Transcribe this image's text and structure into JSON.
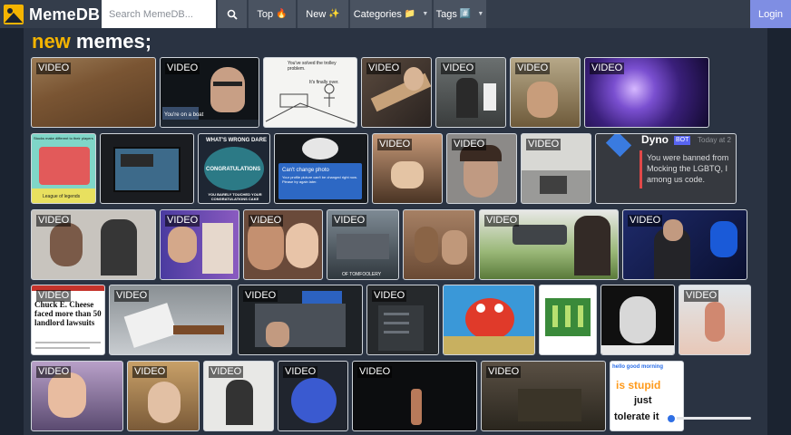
{
  "nav": {
    "brand": "MemeDB",
    "search_placeholder": "Search MemeDB...",
    "search_icon": "magnifier-icon",
    "top_label": "Top",
    "top_emoji": "🔥",
    "new_label": "New",
    "new_emoji": "✨",
    "categories_label": "Categories",
    "categories_emoji": "📁",
    "tags_label": "Tags",
    "tags_emoji": "#️⃣",
    "login_label": "Login"
  },
  "heading": {
    "accent": "new",
    "rest": " memes;"
  },
  "badge_label": "VIDEO",
  "captions": {
    "m2_text": "You're on a boat",
    "m3_top": "You've solved the trolley problem.",
    "m3_bottom": "It's finally over.",
    "m11_title": "WHAT'S WRONG DARE",
    "m11_cake": "CONGRATULATIONS",
    "m11_bottom": "YOU BARELY TOUCHED YOUR CONGRATULATIONS CAKE",
    "m12_title": "Can't change photo",
    "m12_body": "Your profile picture can't be changed right now. Please try again later.",
    "m16_name": "Dyno",
    "m16_bot": "BOT",
    "m16_time": "Today at 2",
    "m16_line1": "You were banned from",
    "m16_line2": "Mocking the LGBTQ, I",
    "m16_line3": "among us code.",
    "m8_caption": "League of legends",
    "m8_top": "Stocks make different to their players",
    "m21_tag": "OF TOMFOOLERY",
    "m25_headline": "Chuck E. Cheese faced more than 50 landlord lawsuits",
    "m33_line1": "is stupid",
    "m33_line2": "just",
    "m33_line3": "tolerate it",
    "m33_header": "hello good morning"
  },
  "tiles": [
    {
      "name": "meme-leaves",
      "video": true
    },
    {
      "name": "meme-heisenberg",
      "video": true
    },
    {
      "name": "meme-trolley-problem",
      "video": false
    },
    {
      "name": "meme-guitar",
      "video": true
    },
    {
      "name": "meme-room",
      "video": true
    },
    {
      "name": "meme-hallway",
      "video": true
    },
    {
      "name": "meme-galaxy",
      "video": true
    },
    {
      "name": "meme-league-comic",
      "video": false
    },
    {
      "name": "meme-tv-screen",
      "video": false
    },
    {
      "name": "meme-cake",
      "video": false
    },
    {
      "name": "meme-cant-change-photo",
      "video": false
    },
    {
      "name": "meme-cats-paws",
      "video": true
    },
    {
      "name": "meme-girl-closeup",
      "video": true
    },
    {
      "name": "meme-office",
      "video": true
    },
    {
      "name": "meme-dyno-ban",
      "video": false
    },
    {
      "name": "meme-guy-clap",
      "video": true
    },
    {
      "name": "meme-facetime",
      "video": true
    },
    {
      "name": "meme-baby-face",
      "video": true
    },
    {
      "name": "meme-tomfoolery",
      "video": true
    },
    {
      "name": "meme-cats-brown",
      "video": false
    },
    {
      "name": "meme-gun",
      "video": true
    },
    {
      "name": "meme-sonic-news",
      "video": true
    },
    {
      "name": "meme-chuck-e-cheese",
      "video": true
    },
    {
      "name": "meme-boat-crash",
      "video": true
    },
    {
      "name": "meme-window",
      "video": true
    },
    {
      "name": "meme-phone-dark",
      "video": true
    },
    {
      "name": "meme-mr-krabs",
      "video": false
    },
    {
      "name": "meme-green-figures",
      "video": false
    },
    {
      "name": "meme-black-white",
      "video": false
    },
    {
      "name": "meme-beach",
      "video": true
    },
    {
      "name": "meme-streamer",
      "video": true
    },
    {
      "name": "meme-old-man",
      "video": true
    },
    {
      "name": "meme-person-back",
      "video": true
    },
    {
      "name": "meme-blue-screen",
      "video": true
    },
    {
      "name": "meme-dark-bottle",
      "video": true
    },
    {
      "name": "meme-gif-room",
      "video": true
    },
    {
      "name": "meme-is-stupid",
      "video": false
    }
  ],
  "colors": {
    "accent": "#f4b400",
    "nav_bg": "#343d4b",
    "login_bg": "#7f8ee3",
    "page_bg": "#1b2330",
    "panel_bg": "#2a3342"
  }
}
